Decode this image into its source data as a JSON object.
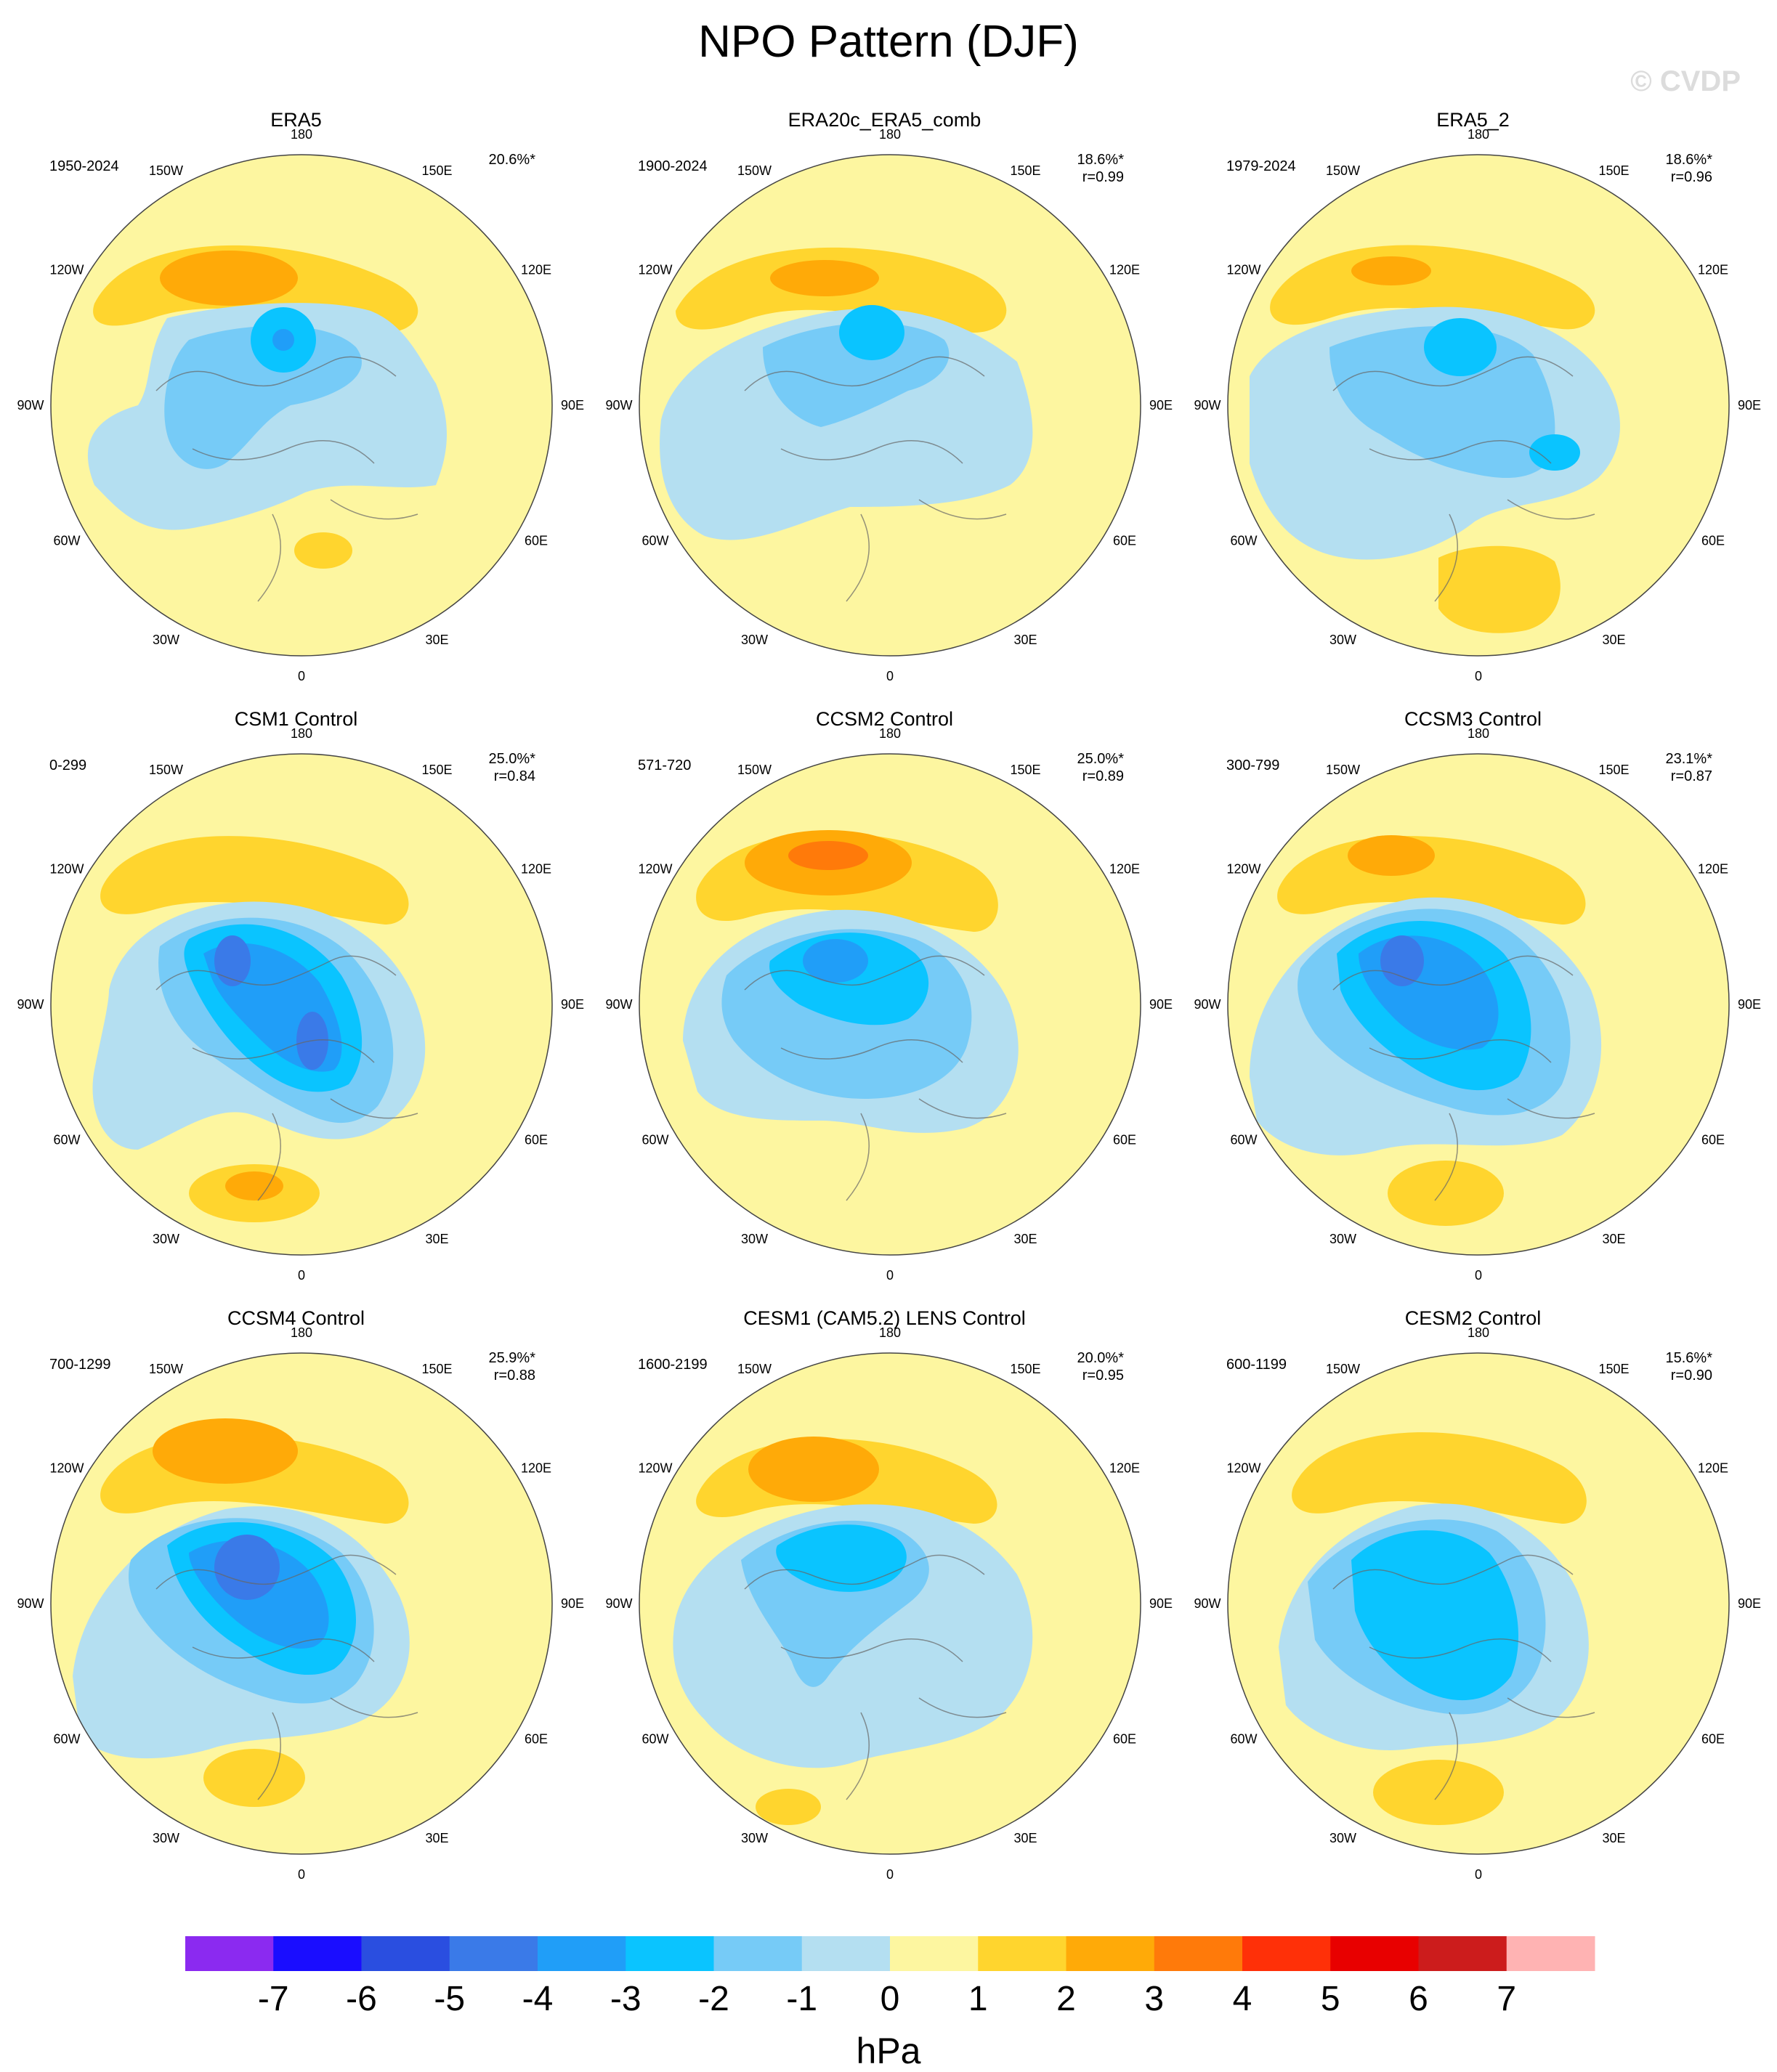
{
  "title": "NPO Pattern (DJF)",
  "watermark": "© CVDP",
  "units": "hPa",
  "colorbar": {
    "labels": [
      "-7",
      "-6",
      "-5",
      "-4",
      "-3",
      "-2",
      "-1",
      "0",
      "1",
      "2",
      "3",
      "4",
      "5",
      "6",
      "7"
    ],
    "colors": [
      "#8b2af0",
      "#1a0dff",
      "#2a4ee0",
      "#3a7ae8",
      "#209ef8",
      "#0ac4ff",
      "#76cbf7",
      "#b4dff1",
      "#fdf6a0",
      "#ffd52e",
      "#ffaa08",
      "#ff7a0a",
      "#ff3008",
      "#e80000",
      "#cc1c1c",
      "#ffb3b3"
    ]
  },
  "lon_labels": [
    "180",
    "150E",
    "120E",
    "90E",
    "60E",
    "30E",
    "0",
    "30W",
    "60W",
    "90W",
    "120W",
    "150W"
  ],
  "panels": [
    {
      "title": "ERA5",
      "period": "1950-2024",
      "pct": "20.6%*",
      "r": ""
    },
    {
      "title": "ERA20c_ERA5_comb",
      "period": "1900-2024",
      "pct": "18.6%*",
      "r": "r=0.99"
    },
    {
      "title": "ERA5_2",
      "period": "1979-2024",
      "pct": "18.6%*",
      "r": "r=0.96"
    },
    {
      "title": "CSM1 Control",
      "period": "0-299",
      "pct": "25.0%*",
      "r": "r=0.84"
    },
    {
      "title": "CCSM2 Control",
      "period": "571-720",
      "pct": "25.0%*",
      "r": "r=0.89"
    },
    {
      "title": "CCSM3 Control",
      "period": "300-799",
      "pct": "23.1%*",
      "r": "r=0.87"
    },
    {
      "title": "CCSM4 Control",
      "period": "700-1299",
      "pct": "25.9%*",
      "r": "r=0.88"
    },
    {
      "title": "CESM1 (CAM5.2) LENS Control",
      "period": "1600-2199",
      "pct": "20.0%*",
      "r": "r=0.95"
    },
    {
      "title": "CESM2 Control",
      "period": "600-1199",
      "pct": "15.6%*",
      "r": "r=0.90"
    }
  ]
}
